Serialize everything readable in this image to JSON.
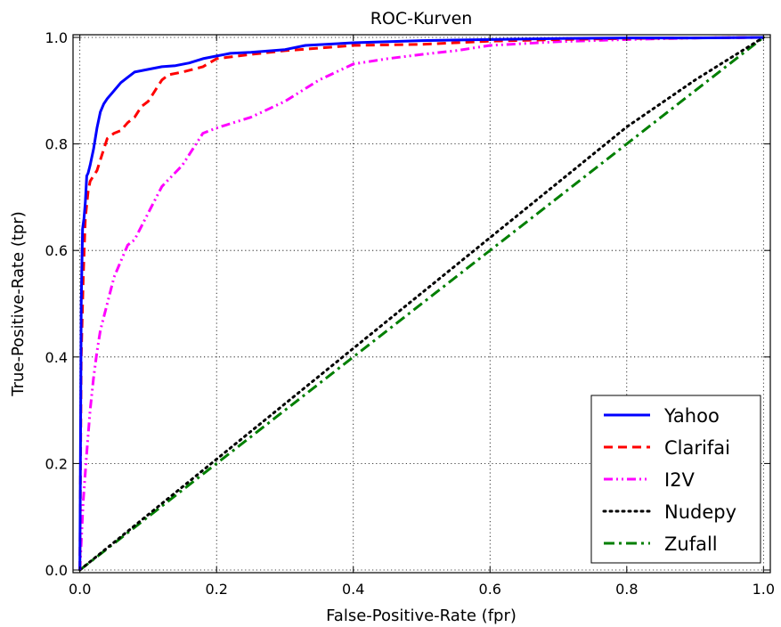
{
  "chart_data": {
    "type": "line",
    "title": "ROC-Kurven",
    "xlabel": "False-Positive-Rate (fpr)",
    "ylabel": "True-Positive-Rate (tpr)",
    "xlim": [
      -0.01,
      1.01
    ],
    "ylim": [
      -0.005,
      1.005
    ],
    "xticks": [
      {
        "value": 0.0,
        "label": "0.0"
      },
      {
        "value": 0.2,
        "label": "0.2"
      },
      {
        "value": 0.4,
        "label": "0.4"
      },
      {
        "value": 0.6,
        "label": "0.6"
      },
      {
        "value": 0.8,
        "label": "0.8"
      },
      {
        "value": 1.0,
        "label": "1.0"
      }
    ],
    "yticks": [
      {
        "value": 0.0,
        "label": "0.0"
      },
      {
        "value": 0.2,
        "label": "0.2"
      },
      {
        "value": 0.4,
        "label": "0.4"
      },
      {
        "value": 0.6,
        "label": "0.6"
      },
      {
        "value": 0.8,
        "label": "0.8"
      },
      {
        "value": 1.0,
        "label": "1.0"
      }
    ],
    "grid": true,
    "legend_position": "bottom-right",
    "series": [
      {
        "name": "Yahoo",
        "color": "#0000ff",
        "style": "solid",
        "x": [
          0.0,
          0.002,
          0.004,
          0.006,
          0.008,
          0.01,
          0.012,
          0.015,
          0.02,
          0.025,
          0.03,
          0.035,
          0.04,
          0.05,
          0.06,
          0.07,
          0.08,
          0.1,
          0.12,
          0.14,
          0.16,
          0.18,
          0.2,
          0.22,
          0.25,
          0.3,
          0.33,
          0.4,
          0.5,
          0.6,
          0.7,
          0.8,
          0.9,
          1.0
        ],
        "y": [
          0.0,
          0.5,
          0.64,
          0.66,
          0.69,
          0.74,
          0.745,
          0.76,
          0.79,
          0.83,
          0.86,
          0.875,
          0.885,
          0.9,
          0.915,
          0.925,
          0.935,
          0.94,
          0.945,
          0.947,
          0.952,
          0.96,
          0.965,
          0.97,
          0.972,
          0.977,
          0.985,
          0.99,
          0.994,
          0.996,
          0.998,
          0.999,
          0.999,
          1.0
        ]
      },
      {
        "name": "Clarifai",
        "color": "#ff0000",
        "style": "dashed",
        "x": [
          0.0,
          0.002,
          0.005,
          0.008,
          0.012,
          0.015,
          0.02,
          0.025,
          0.03,
          0.035,
          0.04,
          0.05,
          0.06,
          0.07,
          0.08,
          0.09,
          0.1,
          0.11,
          0.12,
          0.13,
          0.15,
          0.18,
          0.2,
          0.25,
          0.3,
          0.35,
          0.4,
          0.45,
          0.5,
          0.55,
          0.6,
          0.7,
          0.8,
          0.9,
          1.0
        ],
        "y": [
          0.0,
          0.4,
          0.55,
          0.66,
          0.71,
          0.73,
          0.74,
          0.75,
          0.77,
          0.79,
          0.81,
          0.82,
          0.825,
          0.84,
          0.85,
          0.87,
          0.88,
          0.9,
          0.92,
          0.93,
          0.935,
          0.945,
          0.96,
          0.968,
          0.975,
          0.98,
          0.985,
          0.986,
          0.987,
          0.99,
          0.993,
          0.996,
          0.998,
          0.999,
          1.0
        ]
      },
      {
        "name": "I2V",
        "color": "#ff00ff",
        "style": "dashdotdot",
        "x": [
          0.0,
          0.005,
          0.01,
          0.015,
          0.02,
          0.025,
          0.03,
          0.04,
          0.05,
          0.06,
          0.07,
          0.08,
          0.1,
          0.12,
          0.15,
          0.18,
          0.2,
          0.25,
          0.3,
          0.35,
          0.4,
          0.45,
          0.5,
          0.55,
          0.6,
          0.7,
          0.8,
          0.9,
          1.0
        ],
        "y": [
          0.0,
          0.13,
          0.22,
          0.3,
          0.36,
          0.41,
          0.45,
          0.5,
          0.55,
          0.58,
          0.61,
          0.62,
          0.67,
          0.72,
          0.76,
          0.82,
          0.83,
          0.85,
          0.88,
          0.92,
          0.95,
          0.96,
          0.968,
          0.975,
          0.985,
          0.992,
          0.996,
          0.999,
          1.0
        ]
      },
      {
        "name": "Nudepy",
        "color": "#000000",
        "style": "dotted",
        "x": [
          0.0,
          0.2,
          0.4,
          0.6,
          0.8,
          0.9,
          1.0
        ],
        "y": [
          0.0,
          0.208,
          0.416,
          0.624,
          0.832,
          0.92,
          1.0
        ]
      },
      {
        "name": "Zufall",
        "color": "#007f00",
        "style": "dashdot",
        "x": [
          0.0,
          1.0
        ],
        "y": [
          0.0,
          1.0
        ]
      }
    ]
  }
}
